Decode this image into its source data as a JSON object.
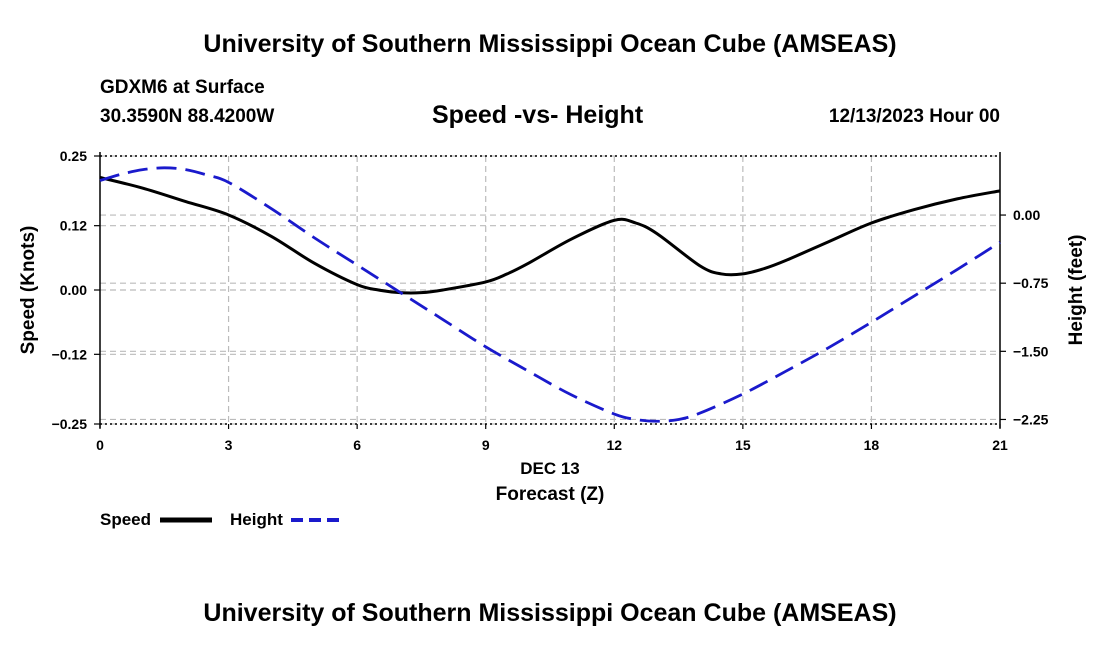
{
  "header": {
    "title_top": "University of Southern Mississippi Ocean Cube (AMSEAS)",
    "station": "GDXM6 at Surface",
    "coords": "30.3590N  88.4200W",
    "date": "12/13/2023 Hour 00",
    "title_bottom": "University of Southern Mississippi Ocean Cube (AMSEAS)"
  },
  "legend": {
    "speed_label": "Speed",
    "height_label": "Height"
  },
  "colors": {
    "speed": "#000000",
    "height": "#1a1acc",
    "grid": "#bbbbbb"
  },
  "chart_data": {
    "type": "line",
    "title": "Speed -vs- Height",
    "xlabel": "Forecast (Z)",
    "xsublabel": "DEC 13",
    "ylabel": "Speed (Knots)",
    "y2label": "Height (feet)",
    "xlim": [
      0,
      21
    ],
    "ylim": [
      -0.25,
      0.25
    ],
    "y2lim": [
      -2.3,
      0.65
    ],
    "x_ticks": [
      0,
      3,
      6,
      9,
      12,
      15,
      18,
      21
    ],
    "y_ticks": [
      0.25,
      0.12,
      0.0,
      -0.12,
      -0.25
    ],
    "y_tick_labels": [
      "0.25",
      "0.12",
      "0.00",
      "−0.12",
      "−0.25"
    ],
    "y2_ticks": [
      0.0,
      -0.75,
      -1.5,
      -2.25
    ],
    "y2_tick_labels": [
      "0.00",
      "−0.75",
      "−1.50",
      "−2.25"
    ],
    "series": [
      {
        "name": "Speed",
        "axis": "left",
        "style": "solid",
        "x": [
          0,
          1,
          2,
          3,
          4,
          5,
          6,
          6.5,
          7,
          7.5,
          8,
          9,
          9.5,
          10,
          11,
          12,
          12.5,
          13,
          14,
          14.5,
          15,
          15.5,
          16,
          17,
          18,
          19,
          20,
          21
        ],
        "y": [
          0.21,
          0.19,
          0.165,
          0.14,
          0.1,
          0.05,
          0.01,
          0.0,
          -0.005,
          -0.005,
          0.0,
          0.015,
          0.03,
          0.05,
          0.095,
          0.13,
          0.125,
          0.105,
          0.045,
          0.03,
          0.03,
          0.04,
          0.055,
          0.09,
          0.125,
          0.15,
          0.17,
          0.185
        ]
      },
      {
        "name": "Height",
        "axis": "right",
        "style": "dashed",
        "x": [
          0,
          0.5,
          1,
          1.5,
          2,
          2.5,
          3,
          4,
          5,
          6,
          7,
          8,
          9,
          10,
          11,
          12,
          12.5,
          13,
          13.5,
          14,
          15,
          16,
          17,
          18,
          19,
          20,
          21
        ],
        "y": [
          0.38,
          0.45,
          0.5,
          0.52,
          0.5,
          0.44,
          0.36,
          0.07,
          -0.25,
          -0.55,
          -0.85,
          -1.15,
          -1.45,
          -1.72,
          -1.98,
          -2.19,
          -2.25,
          -2.27,
          -2.25,
          -2.18,
          -1.97,
          -1.72,
          -1.46,
          -1.18,
          -0.89,
          -0.6,
          -0.3
        ]
      }
    ]
  }
}
